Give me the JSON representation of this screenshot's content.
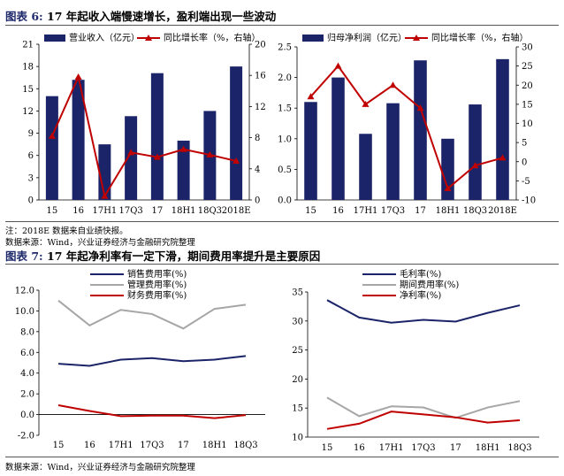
{
  "figure6": {
    "label": "图表 6:",
    "title": "17 年起收入端慢速增长，盈利端出现一些波动",
    "note": "注：2018E 数据来自业绩快报。",
    "source": "数据来源：Wind，兴业证券经济与金融研究院整理"
  },
  "figure7": {
    "label": "图表 7:",
    "title": "17 年起净利率有一定下滑，期间费用率提升是主要原因",
    "source": "数据来源：Wind，兴业证券经济与金融研究院整理"
  },
  "colors": {
    "bar": "#1b2468",
    "growth": "#c00000",
    "gross": "#1b2468",
    "gray": "#a6a6a6"
  },
  "chart_data": [
    {
      "id": "revenue",
      "type": "bar",
      "categories": [
        "15",
        "16",
        "17H1",
        "17Q3",
        "17",
        "18H1",
        "18Q3",
        "2018E"
      ],
      "series": [
        {
          "name": "营业收入（亿元）",
          "axis": "left",
          "type": "bar",
          "values": [
            14.0,
            16.2,
            7.5,
            11.3,
            17.1,
            8.0,
            12.0,
            18.0
          ]
        },
        {
          "name": "同比增长率（%，右轴）",
          "axis": "right",
          "type": "line",
          "values": [
            8.2,
            15.8,
            0.5,
            6.1,
            5.5,
            6.5,
            5.8,
            5.0
          ]
        }
      ],
      "y_left": {
        "ticks": [
          "0",
          "3",
          "6",
          "9",
          "12",
          "15",
          "18",
          "21"
        ],
        "ylim": [
          0,
          21
        ]
      },
      "y_right": {
        "ticks": [
          "0",
          "4",
          "8",
          "12",
          "16",
          "20"
        ],
        "ylim": [
          0,
          20
        ]
      },
      "legend": [
        "营业收入（亿元）",
        "同比增长率（%，右轴）"
      ]
    },
    {
      "id": "netprofit",
      "type": "bar",
      "categories": [
        "15",
        "16",
        "17H1",
        "17Q3",
        "17",
        "18H1",
        "18Q3",
        "2018E"
      ],
      "series": [
        {
          "name": "归母净利润（亿元）",
          "axis": "left",
          "type": "bar",
          "values": [
            1.6,
            2.0,
            1.08,
            1.58,
            2.28,
            1.0,
            1.56,
            2.3
          ]
        },
        {
          "name": "同比增长率（%，右轴）",
          "axis": "right",
          "type": "line",
          "values": [
            17,
            25,
            15,
            20,
            14,
            -7,
            -1,
            1
          ]
        }
      ],
      "y_left": {
        "ticks": [
          "0.0",
          "0.5",
          "1.0",
          "1.5",
          "2.0",
          "2.5"
        ],
        "ylim": [
          0,
          2.5
        ]
      },
      "y_right": {
        "ticks": [
          "-10",
          "-5",
          "0",
          "5",
          "10",
          "15",
          "20",
          "25",
          "30"
        ],
        "ylim": [
          -10,
          30
        ]
      },
      "legend": [
        "归母净利润（亿元）",
        "同比增长率（%，右轴）"
      ]
    },
    {
      "id": "expense",
      "type": "line",
      "categories": [
        "15",
        "16",
        "17H1",
        "17Q3",
        "17",
        "18H1",
        "18Q3"
      ],
      "series": [
        {
          "name": "销售费用率(%)",
          "values": [
            4.9,
            4.7,
            5.3,
            5.45,
            5.15,
            5.3,
            5.65
          ]
        },
        {
          "name": "管理费用率(%)",
          "values": [
            11.0,
            8.6,
            10.1,
            9.7,
            8.3,
            10.2,
            10.6
          ]
        },
        {
          "name": "财务费用率(%)",
          "values": [
            0.9,
            0.35,
            -0.15,
            -0.1,
            -0.1,
            -0.35,
            -0.05
          ]
        }
      ],
      "y": {
        "ticks": [
          "-2.0",
          "0.0",
          "2.0",
          "4.0",
          "6.0",
          "8.0",
          "10.0",
          "12.0"
        ],
        "ylim": [
          -2,
          12
        ]
      },
      "legend": [
        "销售费用率(%)",
        "管理费用率(%)",
        "财务费用率(%)"
      ]
    },
    {
      "id": "margin",
      "type": "line",
      "categories": [
        "15",
        "16",
        "17H1",
        "17Q3",
        "17",
        "18H1",
        "18Q3"
      ],
      "series": [
        {
          "name": "毛利率(%)",
          "values": [
            33.6,
            30.6,
            29.7,
            30.2,
            29.9,
            31.4,
            32.7
          ]
        },
        {
          "name": "期间费用率(%)",
          "values": [
            16.8,
            13.6,
            15.3,
            15.1,
            13.3,
            15.1,
            16.2
          ]
        },
        {
          "name": "净利率(%)",
          "values": [
            11.4,
            12.3,
            14.4,
            13.9,
            13.4,
            12.5,
            12.9
          ]
        }
      ],
      "y": {
        "ticks": [
          "10",
          "15",
          "20",
          "25",
          "30",
          "35"
        ],
        "ylim": [
          10,
          35
        ]
      },
      "legend": [
        "毛利率(%)",
        "期间费用率(%)",
        "净利率(%)"
      ]
    }
  ]
}
